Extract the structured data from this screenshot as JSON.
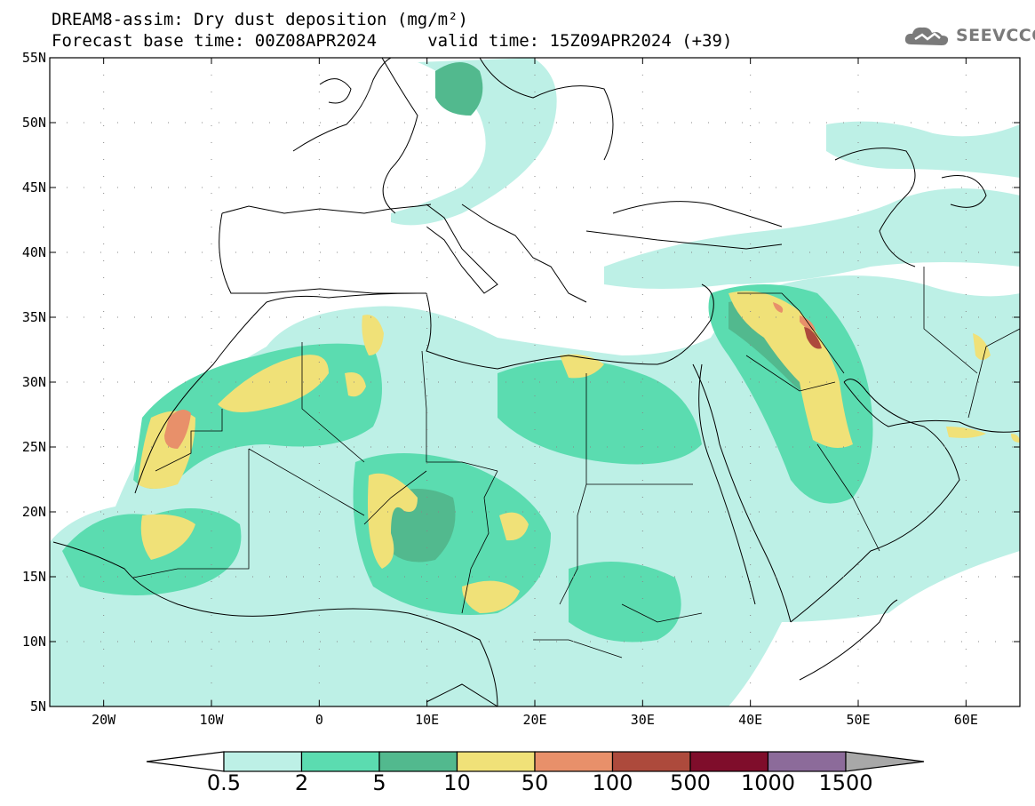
{
  "title": {
    "line1": "DREAM8-assim: Dry dust deposition (mg/m²)",
    "line2": "Forecast base time: 00Z08APR2024     valid time: 15Z09APR2024 (+39)"
  },
  "logo": {
    "text": "SEEVCCC",
    "icon": "cloud-logo-icon"
  },
  "map": {
    "lat_range": [
      5,
      55
    ],
    "lon_range": [
      -25,
      65
    ],
    "lat_ticks": [
      {
        "value": 55,
        "label": "55N"
      },
      {
        "value": 50,
        "label": "50N"
      },
      {
        "value": 45,
        "label": "45N"
      },
      {
        "value": 40,
        "label": "40N"
      },
      {
        "value": 35,
        "label": "35N"
      },
      {
        "value": 30,
        "label": "30N"
      },
      {
        "value": 25,
        "label": "25N"
      },
      {
        "value": 20,
        "label": "20N"
      },
      {
        "value": 15,
        "label": "15N"
      },
      {
        "value": 10,
        "label": "10N"
      },
      {
        "value": 5,
        "label": "5N"
      }
    ],
    "lon_ticks": [
      {
        "value": -20,
        "label": "20W"
      },
      {
        "value": -10,
        "label": "10W"
      },
      {
        "value": 0,
        "label": "0"
      },
      {
        "value": 10,
        "label": "10E"
      },
      {
        "value": 20,
        "label": "20E"
      },
      {
        "value": 30,
        "label": "30E"
      },
      {
        "value": 40,
        "label": "40E"
      },
      {
        "value": 50,
        "label": "50E"
      },
      {
        "value": 60,
        "label": "60E"
      }
    ]
  },
  "colorbar": {
    "below_color": "#ffffff",
    "above_color": "#a8a8a8",
    "bins": [
      {
        "color": "#bdf0e6"
      },
      {
        "color": "#5bdcb0"
      },
      {
        "color": "#52b98e"
      },
      {
        "color": "#f0e178"
      },
      {
        "color": "#e8906a"
      },
      {
        "color": "#ad4a3c"
      },
      {
        "color": "#7f0d2b"
      },
      {
        "color": "#8c6b9a"
      }
    ],
    "labels": [
      "0.5",
      "2",
      "5",
      "10",
      "50",
      "100",
      "500",
      "1000",
      "1500"
    ]
  }
}
